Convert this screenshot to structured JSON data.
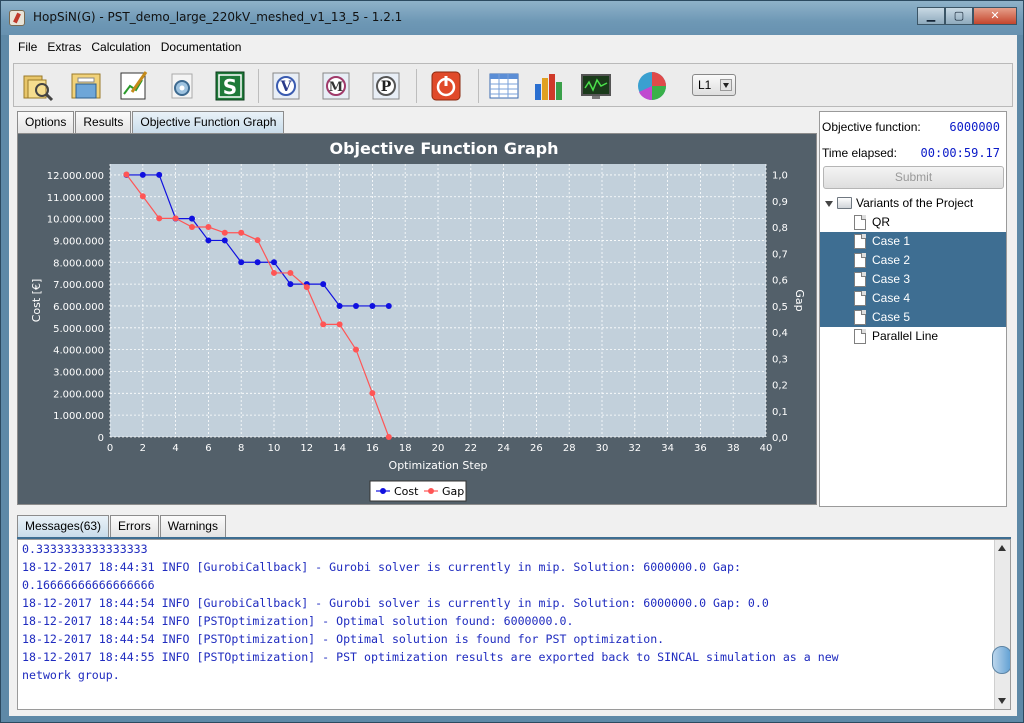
{
  "window": {
    "title": "HopSiN(G) - PST_demo_large_220kV_meshed_v1_13_5 - 1.2.1",
    "minimize_label": "▁",
    "maximize_label": "▢",
    "close_label": "✕"
  },
  "menu": [
    "File",
    "Extras",
    "Calculation",
    "Documentation"
  ],
  "toolbar": {
    "buttons": [
      "open-folder-icon",
      "save-icon",
      "edit-icon",
      "settings-gear-icon",
      "s-icon",
      "v-icon",
      "m-icon",
      "p-icon",
      "power-icon",
      "table-icon",
      "bar-chart-icon",
      "monitor-icon",
      "pie-chart-icon"
    ],
    "dropdown_value": "L1"
  },
  "tabs": [
    "Options",
    "Results",
    "Objective Function Graph"
  ],
  "active_tab": 2,
  "right_panel": {
    "objective_label": "Objective function:",
    "objective_value": "6000000",
    "time_label": "Time elapsed:",
    "time_value": "00:00:59.17",
    "submit_label": "Submit",
    "tree_root": "Variants of the Project",
    "tree_items": [
      {
        "label": "QR",
        "selected": false
      },
      {
        "label": "Case 1",
        "selected": true
      },
      {
        "label": "Case 2",
        "selected": true
      },
      {
        "label": "Case 3",
        "selected": true
      },
      {
        "label": "Case 4",
        "selected": true
      },
      {
        "label": "Case 5",
        "selected": true
      },
      {
        "label": "Parallel Line",
        "selected": false
      }
    ]
  },
  "chart_data": {
    "type": "line",
    "title": "Objective Function Graph",
    "xlabel": "Optimization Step",
    "ylabel": "Cost [€]",
    "y2label": "Gap",
    "xlim": [
      0,
      40
    ],
    "ylim": [
      0,
      12500000
    ],
    "y2lim": [
      0,
      1.04
    ],
    "x_ticks": [
      0,
      2,
      4,
      6,
      8,
      10,
      12,
      14,
      16,
      18,
      20,
      22,
      24,
      26,
      28,
      30,
      32,
      34,
      36,
      38,
      40
    ],
    "y_ticks": [
      "0",
      "1.000.000",
      "2.000.000",
      "3.000.000",
      "4.000.000",
      "5.000.000",
      "6.000.000",
      "7.000.000",
      "8.000.000",
      "9.000.000",
      "10.000.000",
      "11.000.000",
      "12.000.000"
    ],
    "y_tick_values": [
      0,
      1000000,
      2000000,
      3000000,
      4000000,
      5000000,
      6000000,
      7000000,
      8000000,
      9000000,
      10000000,
      11000000,
      12000000
    ],
    "y2_ticks": [
      "0,0",
      "0,1",
      "0,2",
      "0,3",
      "0,4",
      "0,5",
      "0,6",
      "0,7",
      "0,8",
      "0,9",
      "1,0"
    ],
    "y2_tick_values": [
      0,
      0.1,
      0.2,
      0.3,
      0.4,
      0.5,
      0.6,
      0.7,
      0.8,
      0.9,
      1.0
    ],
    "grid": true,
    "legend_placement": "bottom-center",
    "series": [
      {
        "name": "Cost",
        "axis": "left",
        "color": "#1010e0",
        "x": [
          1,
          2,
          3,
          4,
          5,
          6,
          7,
          8,
          9,
          10,
          11,
          12,
          13,
          14,
          15,
          16,
          17
        ],
        "values": [
          12000000,
          12000000,
          12000000,
          10000000,
          10000000,
          9000000,
          9000000,
          8000000,
          8000000,
          8000000,
          7000000,
          7000000,
          7000000,
          6000000,
          6000000,
          6000000,
          6000000
        ]
      },
      {
        "name": "Gap",
        "axis": "right",
        "color": "#ff5555",
        "x": [
          1,
          2,
          3,
          4,
          5,
          6,
          7,
          8,
          9,
          10,
          11,
          12,
          13,
          14,
          15,
          16,
          17
        ],
        "values": [
          1.0,
          0.917,
          0.833,
          0.833,
          0.8,
          0.8,
          0.778,
          0.778,
          0.75,
          0.625,
          0.625,
          0.571,
          0.429,
          0.429,
          0.333,
          0.167,
          0.0
        ]
      }
    ]
  },
  "bottom_tabs": [
    "Messages(63)",
    "Errors",
    "Warnings"
  ],
  "active_bottom_tab": 0,
  "messages": [
    "0.3333333333333333",
    "18-12-2017 18:44:31 INFO [GurobiCallback] - Gurobi solver is currently in mip. Solution: 6000000.0 Gap:",
    "0.16666666666666666",
    "18-12-2017 18:44:54 INFO [GurobiCallback] - Gurobi solver is currently in mip. Solution: 6000000.0 Gap: 0.0",
    "18-12-2017 18:44:54 INFO [PSTOptimization] - Optimal solution found: 6000000.0.",
    "18-12-2017 18:44:54 INFO [PSTOptimization] - Optimal solution is found for PST optimization.",
    "18-12-2017 18:44:55 INFO [PSTOptimization] - PST optimization results are exported back to SINCAL simulation as a new",
    "network group."
  ]
}
